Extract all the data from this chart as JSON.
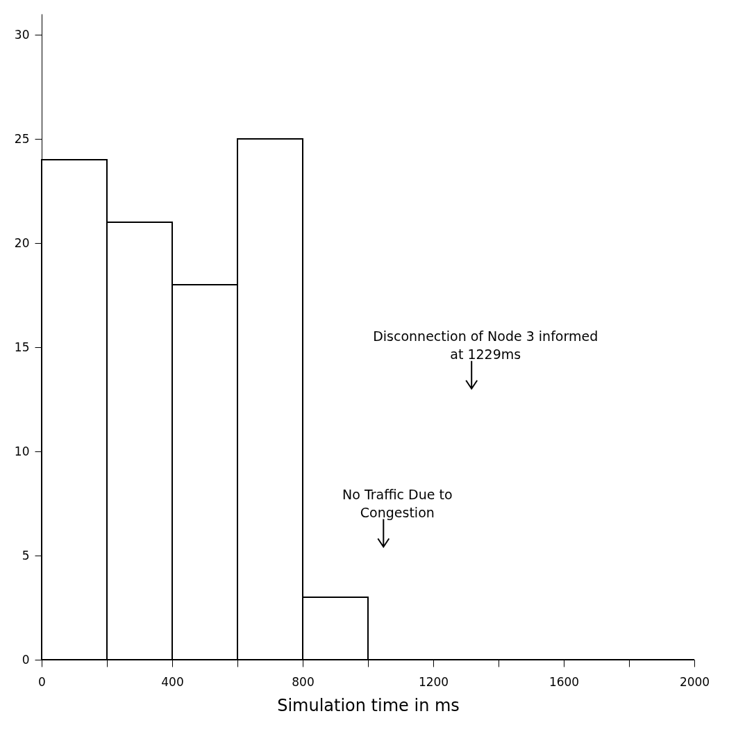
{
  "chart_data": {
    "type": "histogram",
    "xlabel": "Simulation time in ms",
    "bins": [
      0,
      200,
      400,
      600,
      800,
      1000,
      1200,
      1400,
      1600,
      1800,
      2000
    ],
    "values": [
      24,
      21,
      18,
      25,
      3,
      0,
      0,
      0,
      0,
      0
    ],
    "color": "#000000",
    "xlim": [
      0,
      2000
    ],
    "xticks": [
      0,
      {
        "value": 200,
        "label": null
      },
      400,
      {
        "value": 600,
        "label": null
      },
      800,
      {
        "value": 1000,
        "label": null
      },
      1200,
      {
        "value": 1400,
        "label": null
      },
      1600,
      {
        "value": 1800,
        "label": null
      },
      2000
    ],
    "ylim": [
      0,
      31
    ],
    "yticks": [
      0,
      5,
      10,
      15,
      20,
      25,
      30
    ],
    "grid": false,
    "annotations": [
      "Disconnection of Node 3 informed\nat 1229ms",
      "No Traffic Due to\nCongestion"
    ]
  }
}
